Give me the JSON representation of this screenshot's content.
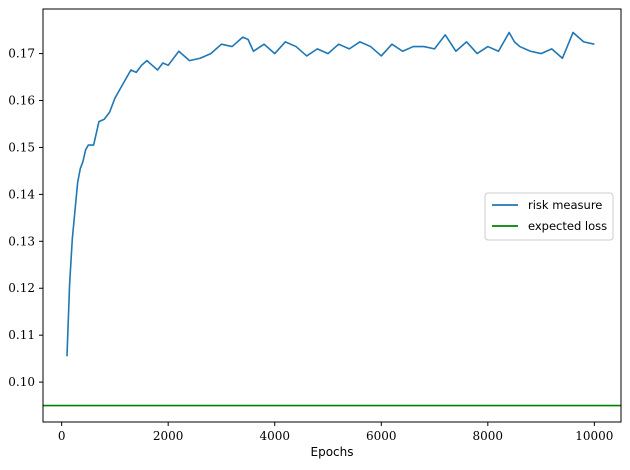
{
  "chart_data": {
    "type": "line",
    "title": "",
    "xlabel": "Epochs",
    "ylabel": "",
    "xlim": [
      -350,
      10500
    ],
    "ylim": [
      0.0915,
      0.1795
    ],
    "xticks": [
      0,
      2000,
      4000,
      6000,
      8000,
      10000
    ],
    "xtick_labels": [
      "0",
      "2000",
      "4000",
      "6000",
      "8000",
      "10000"
    ],
    "yticks": [
      0.1,
      0.11,
      0.12,
      0.13,
      0.14,
      0.15,
      0.16,
      0.17
    ],
    "ytick_labels": [
      "0.10",
      "0.11",
      "0.12",
      "0.13",
      "0.14",
      "0.15",
      "0.16",
      "0.17"
    ],
    "grid": false,
    "legend_position": "center-right",
    "series": [
      {
        "name": "risk measure",
        "color": "#1f77b4",
        "x": [
          100,
          150,
          200,
          250,
          300,
          350,
          400,
          450,
          500,
          600,
          700,
          800,
          900,
          1000,
          1100,
          1200,
          1300,
          1400,
          1500,
          1600,
          1700,
          1800,
          1900,
          2000,
          2200,
          2400,
          2600,
          2800,
          3000,
          3200,
          3400,
          3500,
          3600,
          3800,
          4000,
          4200,
          4400,
          4600,
          4800,
          5000,
          5200,
          5400,
          5600,
          5800,
          6000,
          6200,
          6400,
          6600,
          6800,
          7000,
          7200,
          7400,
          7600,
          7800,
          8000,
          8200,
          8400,
          8500,
          8600,
          8800,
          9000,
          9200,
          9400,
          9600,
          9800,
          10000
        ],
        "y": [
          0.1055,
          0.121,
          0.1305,
          0.1365,
          0.1425,
          0.1455,
          0.147,
          0.1495,
          0.1505,
          0.1505,
          0.1555,
          0.156,
          0.1575,
          0.1605,
          0.1625,
          0.1645,
          0.1665,
          0.166,
          0.1675,
          0.1685,
          0.1675,
          0.1665,
          0.168,
          0.1675,
          0.1705,
          0.1685,
          0.169,
          0.17,
          0.172,
          0.1715,
          0.1735,
          0.173,
          0.1705,
          0.172,
          0.17,
          0.1725,
          0.1715,
          0.1695,
          0.171,
          0.17,
          0.172,
          0.171,
          0.1725,
          0.1715,
          0.1695,
          0.172,
          0.1705,
          0.1715,
          0.1715,
          0.171,
          0.174,
          0.1705,
          0.1725,
          0.17,
          0.1715,
          0.1705,
          0.1745,
          0.1725,
          0.1715,
          0.1705,
          0.17,
          0.171,
          0.169,
          0.1745,
          0.1725,
          0.172
        ]
      },
      {
        "name": "expected loss",
        "color": "#008000",
        "x": [
          -350,
          10500
        ],
        "y": [
          0.095,
          0.095
        ]
      }
    ]
  }
}
